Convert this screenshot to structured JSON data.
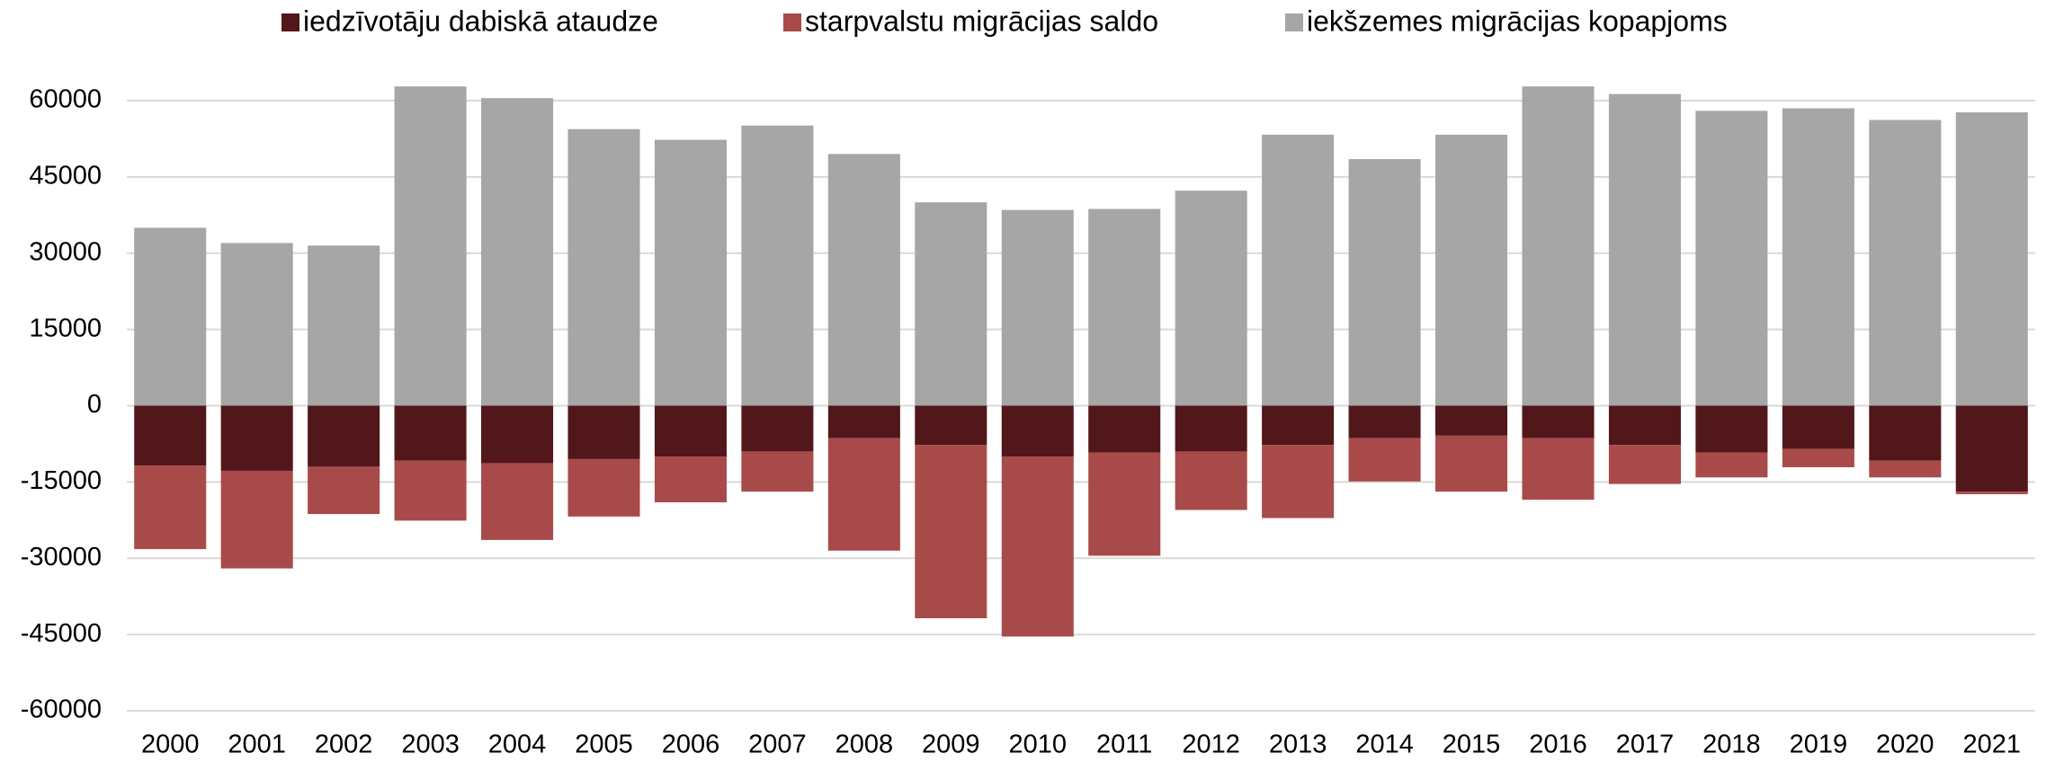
{
  "chart_data": {
    "type": "bar",
    "stacked": true,
    "categories": [
      "2000",
      "2001",
      "2002",
      "2003",
      "2004",
      "2005",
      "2006",
      "2007",
      "2008",
      "2009",
      "2010",
      "2011",
      "2012",
      "2013",
      "2014",
      "2015",
      "2016",
      "2017",
      "2018",
      "2019",
      "2020",
      "2021"
    ],
    "series": [
      {
        "name": "iedzīvotāju dabiskā ataudze",
        "color": "#52171a",
        "values": [
          -11800,
          -12800,
          -12000,
          -10800,
          -11300,
          -10500,
          -10000,
          -9000,
          -6400,
          -7700,
          -10000,
          -9200,
          -9000,
          -7700,
          -6400,
          -5900,
          -6400,
          -7700,
          -9200,
          -8500,
          -10800,
          -16900
        ]
      },
      {
        "name": "starpvalstu migrācijas saldo",
        "color": "#a94a4a",
        "values": [
          -16400,
          -19200,
          -9300,
          -11800,
          -15100,
          -11300,
          -9000,
          -7900,
          -22100,
          -34100,
          -35400,
          -20300,
          -11500,
          -14400,
          -8500,
          -11000,
          -12100,
          -7700,
          -4900,
          -3600,
          -3300,
          -500
        ]
      },
      {
        "name": "iekšzemes migrācijas kopapjoms",
        "color": "#a6a6a6",
        "values": [
          35000,
          32000,
          31500,
          62800,
          60500,
          54400,
          52300,
          55100,
          49500,
          40000,
          38500,
          38700,
          42300,
          53300,
          48500,
          53300,
          62800,
          61300,
          58000,
          58500,
          56200,
          57700
        ]
      }
    ],
    "ylim": [
      -60000,
      60000
    ],
    "yticks": [
      -60000,
      -45000,
      -30000,
      -15000,
      0,
      15000,
      30000,
      45000,
      60000
    ],
    "grid": true,
    "legend": "top"
  }
}
